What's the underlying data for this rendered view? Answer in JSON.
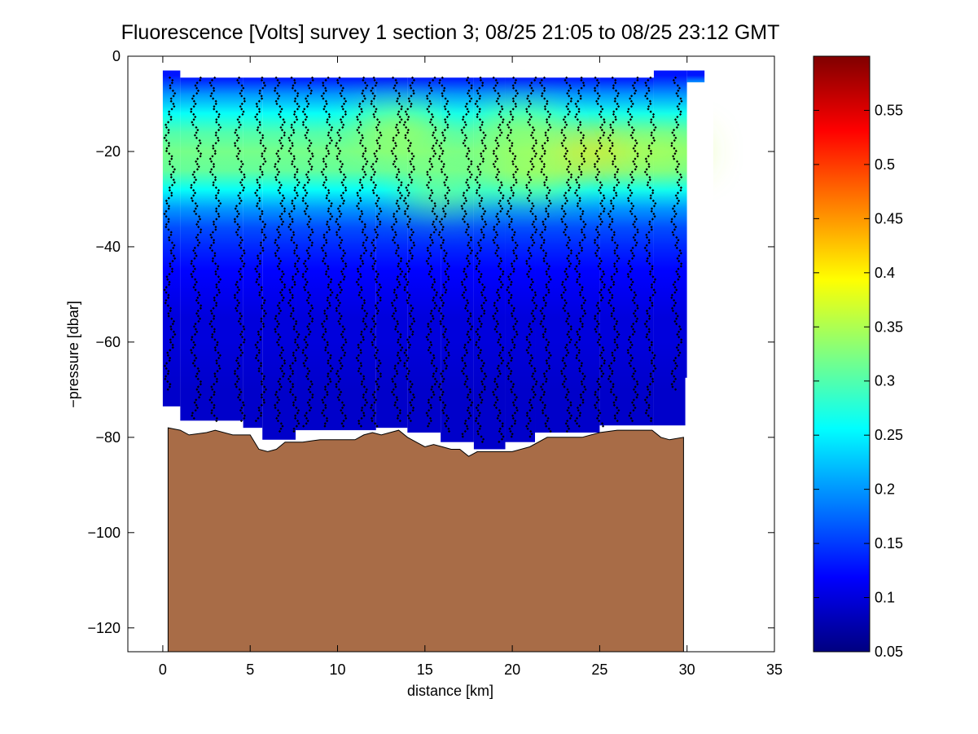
{
  "chart_data": {
    "type": "heatmap",
    "title": "Fluorescence [Volts] survey 1 section 3; 08/25 21:05 to 08/25 23:12 GMT",
    "xlabel": "distance [km]",
    "ylabel": "−pressure [dbar]",
    "xlim": [
      -2,
      35
    ],
    "ylim": [
      -125,
      0
    ],
    "xticks": [
      0,
      5,
      10,
      15,
      20,
      25,
      30,
      35
    ],
    "xtick_labels": [
      "0",
      "5",
      "10",
      "15",
      "20",
      "25",
      "30",
      "35"
    ],
    "yticks": [
      0,
      -20,
      -40,
      -60,
      -80,
      -100,
      -120
    ],
    "ytick_labels": [
      "0",
      "−20",
      "−40",
      "−60",
      "−80",
      "−100",
      "−120"
    ],
    "colorbar": {
      "colormap": "jet",
      "range": [
        0.05,
        0.6
      ],
      "ticks": [
        0.05,
        0.1,
        0.15,
        0.2,
        0.25,
        0.3,
        0.35,
        0.4,
        0.45,
        0.5,
        0.55
      ],
      "tick_labels": [
        "0.05",
        "0.1",
        "0.15",
        "0.2",
        "0.25",
        "0.3",
        "0.35",
        "0.4",
        "0.45",
        "0.5",
        "0.55"
      ]
    },
    "field_profile": {
      "depth": [
        -4,
        -8,
        -12,
        -16,
        -20,
        -24,
        -28,
        -32,
        -36,
        -40,
        -45,
        -50,
        -55,
        -60,
        -70,
        -80
      ],
      "fluorescence": [
        0.13,
        0.2,
        0.26,
        0.3,
        0.32,
        0.31,
        0.26,
        0.2,
        0.16,
        0.14,
        0.12,
        0.11,
        0.1,
        0.1,
        0.09,
        0.09
      ]
    },
    "chlorophyll_max_patches": [
      {
        "x": 13.5,
        "depth": -15,
        "value": 0.36
      },
      {
        "x": 20.5,
        "depth": -15,
        "value": 0.35
      },
      {
        "x": 25.0,
        "depth": -20,
        "value": 0.41
      },
      {
        "x": 21.0,
        "depth": -25,
        "value": 0.36
      },
      {
        "x": 16.0,
        "depth": -28,
        "value": 0.34
      },
      {
        "x": 28.5,
        "depth": -20,
        "value": 0.36
      }
    ],
    "data_coverage": [
      {
        "x0": 0.0,
        "x1": 1.0,
        "top": -3,
        "bottom": -73.5
      },
      {
        "x0": 1.0,
        "x1": 4.6,
        "top": -4.5,
        "bottom": -76.5
      },
      {
        "x0": 4.6,
        "x1": 5.7,
        "top": -4.5,
        "bottom": -78
      },
      {
        "x0": 5.7,
        "x1": 7.6,
        "top": -4.5,
        "bottom": -80.5
      },
      {
        "x0": 7.6,
        "x1": 12.2,
        "top": -4.5,
        "bottom": -78.5
      },
      {
        "x0": 12.2,
        "x1": 14.0,
        "top": -4.5,
        "bottom": -78
      },
      {
        "x0": 14.0,
        "x1": 15.9,
        "top": -4.5,
        "bottom": -79
      },
      {
        "x0": 15.9,
        "x1": 17.8,
        "top": -4.5,
        "bottom": -81
      },
      {
        "x0": 17.8,
        "x1": 19.6,
        "top": -4.5,
        "bottom": -82.5
      },
      {
        "x0": 19.6,
        "x1": 21.3,
        "top": -4.5,
        "bottom": -81
      },
      {
        "x0": 21.3,
        "x1": 25.0,
        "top": -4.5,
        "bottom": -79
      },
      {
        "x0": 25.0,
        "x1": 28.1,
        "top": -4.5,
        "bottom": -77.5
      },
      {
        "x0": 28.1,
        "x1": 30.0,
        "top": -3,
        "bottom": -77.5
      },
      {
        "x0": 30.0,
        "x1": 31.0,
        "top": -3,
        "bottom": -5.5
      }
    ],
    "right_edge_cutoff": {
      "x": 29.9,
      "bottom": -67.5
    },
    "casts": {
      "x": [
        0.4,
        1.9,
        3.0,
        4.4,
        5.6,
        6.7,
        7.5,
        8.3,
        9.4,
        10.2,
        11.4,
        12.2,
        13.4,
        14.1,
        15.4,
        16.1,
        17.4,
        18.2,
        19.2,
        20.0,
        21.1,
        21.9,
        23.1,
        23.9,
        25.0,
        25.8,
        26.9,
        27.9,
        29.4
      ],
      "max_depth": [
        -70,
        -76,
        -77,
        -77,
        -77,
        -79,
        -79,
        -78,
        -78,
        -78,
        -78,
        -78,
        -77,
        -77,
        -78,
        -79,
        -80,
        -81,
        -81,
        -80,
        -80,
        -79,
        -79,
        -78,
        -78,
        -77,
        -77,
        -77,
        -70
      ],
      "marker": "black diamond"
    },
    "bathymetry": {
      "fill_color": "#a86c47",
      "x": [
        0.3,
        1.0,
        1.5,
        2.5,
        3.0,
        4.0,
        5.0,
        5.5,
        6.0,
        6.5,
        7.0,
        7.5,
        8.0,
        9.0,
        10.0,
        11.0,
        11.5,
        12.0,
        12.5,
        13.5,
        14.0,
        14.5,
        15.0,
        15.5,
        16.0,
        16.5,
        17.0,
        17.5,
        18.0,
        19.0,
        20.0,
        21.0,
        22.0,
        23.0,
        24.0,
        25.0,
        26.0,
        27.0,
        28.0,
        28.5,
        29.0,
        29.8
      ],
      "depth": [
        -78,
        -78.5,
        -79.5,
        -79,
        -78.5,
        -79.5,
        -79.5,
        -82.5,
        -83,
        -82.5,
        -81,
        -81,
        -81,
        -80.5,
        -80.5,
        -80.5,
        -79.5,
        -79,
        -79.5,
        -78.5,
        -80,
        -81,
        -82,
        -81.5,
        -82,
        -82.5,
        -82.5,
        -84,
        -83,
        -83,
        -83,
        -82,
        -80,
        -80,
        -80,
        -79,
        -78.5,
        -78.5,
        -78.5,
        -80,
        -80.5,
        -80
      ]
    }
  }
}
